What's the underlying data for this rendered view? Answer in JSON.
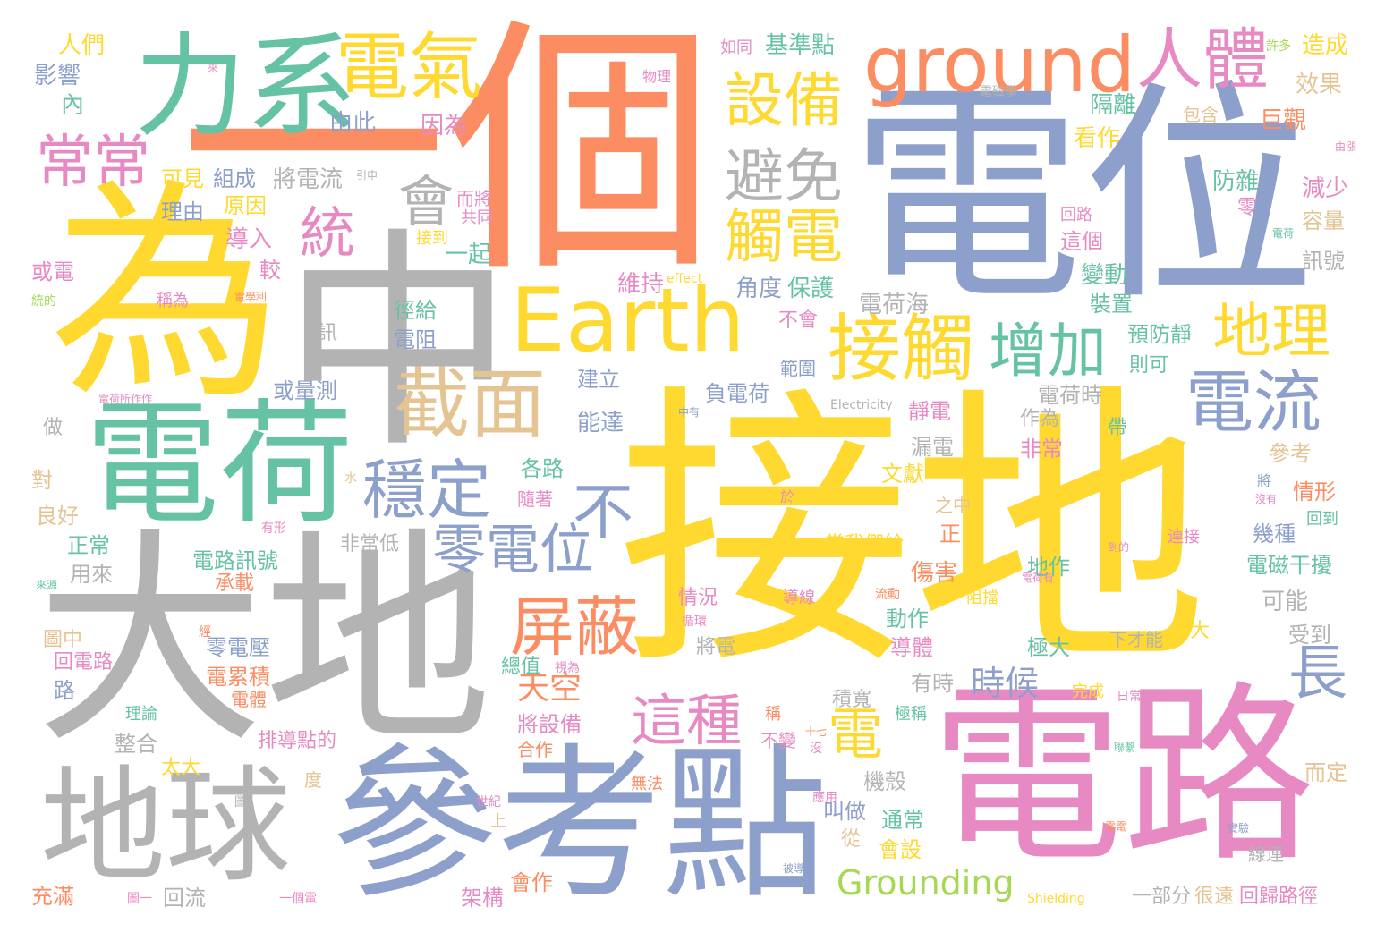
{
  "palette": {
    "orange": "#fc8d62",
    "blue": "#8da0cb",
    "pink": "#e78ac3",
    "green": "#66c2a5",
    "yellow": "#ffd92f",
    "lime": "#a6d854",
    "tan": "#e5c494",
    "gray": "#b3b3b3"
  },
  "words": [
    {
      "text": "接地",
      "color": "yellow"
    },
    {
      "text": "一個",
      "color": "orange"
    },
    {
      "text": "電位",
      "color": "blue"
    },
    {
      "text": "為",
      "color": "yellow"
    },
    {
      "text": "中",
      "color": "gray"
    },
    {
      "text": "大地",
      "color": "gray"
    },
    {
      "text": "電路",
      "color": "pink"
    },
    {
      "text": "參考點",
      "color": "blue"
    },
    {
      "text": "電荷",
      "color": "green"
    },
    {
      "text": "地球",
      "color": "gray"
    },
    {
      "text": "力系",
      "color": "green"
    },
    {
      "text": "電氣",
      "color": "yellow"
    },
    {
      "text": "ground",
      "color": "orange"
    },
    {
      "text": "人體",
      "color": "pink"
    },
    {
      "text": "Earth",
      "color": "yellow"
    },
    {
      "text": "截面",
      "color": "tan"
    },
    {
      "text": "接觸",
      "color": "yellow"
    },
    {
      "text": "設備",
      "color": "yellow"
    },
    {
      "text": "避免",
      "color": "gray"
    },
    {
      "text": "觸電",
      "color": "yellow"
    },
    {
      "text": "增加",
      "color": "green"
    },
    {
      "text": "地理",
      "color": "yellow"
    },
    {
      "text": "電流",
      "color": "blue"
    },
    {
      "text": "穩定",
      "color": "blue"
    },
    {
      "text": "零電位",
      "color": "blue"
    },
    {
      "text": "屏蔽",
      "color": "orange"
    },
    {
      "text": "這種",
      "color": "pink"
    },
    {
      "text": "常常",
      "color": "pink"
    },
    {
      "text": "統",
      "color": "pink"
    },
    {
      "text": "會",
      "color": "gray"
    },
    {
      "text": "不",
      "color": "blue"
    },
    {
      "text": "長",
      "color": "blue"
    },
    {
      "text": "電",
      "color": "yellow"
    },
    {
      "text": "時候",
      "color": "blue"
    },
    {
      "text": "天空",
      "color": "orange"
    },
    {
      "text": "Grounding",
      "color": "lime"
    },
    {
      "text": "人們",
      "color": "yellow"
    },
    {
      "text": "影響",
      "color": "blue"
    },
    {
      "text": "內",
      "color": "green"
    },
    {
      "text": "由此",
      "color": "blue"
    },
    {
      "text": "因為",
      "color": "pink"
    },
    {
      "text": "可見",
      "color": "yellow"
    },
    {
      "text": "組成",
      "color": "blue"
    },
    {
      "text": "將電流",
      "color": "gray"
    },
    {
      "text": "理由",
      "color": "blue"
    },
    {
      "text": "原因",
      "color": "yellow"
    },
    {
      "text": "導入",
      "color": "pink"
    },
    {
      "text": "或電",
      "color": "pink"
    },
    {
      "text": "較",
      "color": "pink"
    },
    {
      "text": "而將",
      "color": "pink"
    },
    {
      "text": "共同",
      "color": "pink"
    },
    {
      "text": "接到",
      "color": "yellow"
    },
    {
      "text": "一起",
      "color": "green"
    },
    {
      "text": "稱為",
      "color": "pink"
    },
    {
      "text": "訊",
      "color": "gray"
    },
    {
      "text": "徑給",
      "color": "green"
    },
    {
      "text": "電阻",
      "color": "blue"
    },
    {
      "text": "或量測",
      "color": "blue"
    },
    {
      "text": "基準點",
      "color": "green"
    },
    {
      "text": "如同",
      "color": "pink"
    },
    {
      "text": "物理",
      "color": "pink"
    },
    {
      "text": "許多",
      "color": "lime"
    },
    {
      "text": "造成",
      "color": "yellow"
    },
    {
      "text": "效果",
      "color": "tan"
    },
    {
      "text": "隔離",
      "color": "green"
    },
    {
      "text": "包含",
      "color": "tan"
    },
    {
      "text": "巨觀",
      "color": "orange"
    },
    {
      "text": "看作",
      "color": "yellow"
    },
    {
      "text": "防雜",
      "color": "green"
    },
    {
      "text": "減少",
      "color": "pink"
    },
    {
      "text": "零",
      "color": "pink"
    },
    {
      "text": "容量",
      "color": "tan"
    },
    {
      "text": "回路",
      "color": "pink"
    },
    {
      "text": "這個",
      "color": "pink"
    },
    {
      "text": "訊號",
      "color": "gray"
    },
    {
      "text": "變動",
      "color": "green"
    },
    {
      "text": "裝置",
      "color": "green"
    },
    {
      "text": "維持",
      "color": "pink"
    },
    {
      "text": "角度",
      "color": "blue"
    },
    {
      "text": "保護",
      "color": "green"
    },
    {
      "text": "電荷海",
      "color": "gray"
    },
    {
      "text": "不會",
      "color": "pink"
    },
    {
      "text": "預防靜",
      "color": "green"
    },
    {
      "text": "則可",
      "color": "green"
    },
    {
      "text": "範圍",
      "color": "blue"
    },
    {
      "text": "建立",
      "color": "blue"
    },
    {
      "text": "負電荷",
      "color": "blue"
    },
    {
      "text": "電荷時",
      "color": "gray"
    },
    {
      "text": "靜電",
      "color": "pink"
    },
    {
      "text": "作為",
      "color": "gray"
    },
    {
      "text": "漏電",
      "color": "gray"
    },
    {
      "text": "能達",
      "color": "blue"
    },
    {
      "text": "做",
      "color": "gray"
    },
    {
      "text": "非常",
      "color": "pink"
    },
    {
      "text": "帶",
      "color": "green"
    },
    {
      "text": "參考",
      "color": "tan"
    },
    {
      "text": "各路",
      "color": "green"
    },
    {
      "text": "文獻",
      "color": "yellow"
    },
    {
      "text": "情形",
      "color": "orange"
    },
    {
      "text": "對",
      "color": "tan"
    },
    {
      "text": "良好",
      "color": "tan"
    },
    {
      "text": "隨著",
      "color": "pink"
    },
    {
      "text": "之中",
      "color": "tan"
    },
    {
      "text": "正",
      "color": "orange"
    },
    {
      "text": "幾種",
      "color": "blue"
    },
    {
      "text": "回到",
      "color": "green"
    },
    {
      "text": "正常",
      "color": "green"
    },
    {
      "text": "非常低",
      "color": "gray"
    },
    {
      "text": "當我們給",
      "color": "yellow"
    },
    {
      "text": "電路訊號",
      "color": "green"
    },
    {
      "text": "用來",
      "color": "gray"
    },
    {
      "text": "承載",
      "color": "orange"
    },
    {
      "text": "傷害",
      "color": "orange"
    },
    {
      "text": "地作",
      "color": "green"
    },
    {
      "text": "電磁干擾",
      "color": "green"
    },
    {
      "text": "可能",
      "color": "gray"
    },
    {
      "text": "連接",
      "color": "pink"
    },
    {
      "text": "情況",
      "color": "pink"
    },
    {
      "text": "導線",
      "color": "pink"
    },
    {
      "text": "動作",
      "color": "green"
    },
    {
      "text": "阻擋",
      "color": "yellow"
    },
    {
      "text": "圖中",
      "color": "tan"
    },
    {
      "text": "零電壓",
      "color": "blue"
    },
    {
      "text": "回電路",
      "color": "pink"
    },
    {
      "text": "電累積",
      "color": "orange"
    },
    {
      "text": "將電",
      "color": "gray"
    },
    {
      "text": "總值",
      "color": "green"
    },
    {
      "text": "導體",
      "color": "pink"
    },
    {
      "text": "極大",
      "color": "green"
    },
    {
      "text": "大",
      "color": "yellow"
    },
    {
      "text": "下才能",
      "color": "gray"
    },
    {
      "text": "受到",
      "color": "gray"
    },
    {
      "text": "路",
      "color": "blue"
    },
    {
      "text": "電體",
      "color": "orange"
    },
    {
      "text": "有時",
      "color": "gray"
    },
    {
      "text": "完成",
      "color": "yellow"
    },
    {
      "text": "日常生活",
      "color": "pink"
    },
    {
      "text": "理論",
      "color": "green"
    },
    {
      "text": "將設備",
      "color": "pink"
    },
    {
      "text": "整合",
      "color": "gray"
    },
    {
      "text": "排導點的",
      "color": "pink"
    },
    {
      "text": "積寬",
      "color": "gray"
    },
    {
      "text": "極稱",
      "color": "green"
    },
    {
      "text": "不變",
      "color": "pink"
    },
    {
      "text": "稱",
      "color": "orange"
    },
    {
      "text": "太大",
      "color": "yellow"
    },
    {
      "text": "合作",
      "color": "orange"
    },
    {
      "text": "機殼",
      "color": "gray"
    },
    {
      "text": "叫做",
      "color": "blue"
    },
    {
      "text": "而定",
      "color": "tan"
    },
    {
      "text": "度",
      "color": "tan"
    },
    {
      "text": "無法",
      "color": "orange"
    },
    {
      "text": "通常",
      "color": "green"
    },
    {
      "text": "會設",
      "color": "yellow"
    },
    {
      "text": "從",
      "color": "tan"
    },
    {
      "text": "上",
      "color": "tan"
    },
    {
      "text": "線連",
      "color": "gray"
    },
    {
      "text": "充滿",
      "color": "orange"
    },
    {
      "text": "回流",
      "color": "gray"
    },
    {
      "text": "架構",
      "color": "pink"
    },
    {
      "text": "會作",
      "color": "orange"
    },
    {
      "text": "一部分",
      "color": "gray"
    },
    {
      "text": "很遠",
      "color": "tan"
    },
    {
      "text": "回歸路徑",
      "color": "pink"
    },
    {
      "text": "Shielding",
      "color": "yellow"
    },
    {
      "text": "effect",
      "color": "yellow"
    },
    {
      "text": "Electricity",
      "color": "gray"
    },
    {
      "text": "電磁學",
      "color": "gray"
    },
    {
      "text": "有形",
      "color": "pink"
    },
    {
      "text": "水",
      "color": "tan"
    },
    {
      "text": "經",
      "color": "orange"
    },
    {
      "text": "流動",
      "color": "orange"
    },
    {
      "text": "循環",
      "color": "pink"
    },
    {
      "text": "視為",
      "color": "pink"
    },
    {
      "text": "世紀",
      "color": "pink"
    },
    {
      "text": "十七",
      "color": "orange"
    },
    {
      "text": "沒",
      "color": "pink"
    },
    {
      "text": "應用",
      "color": "pink"
    },
    {
      "text": "實驗",
      "color": "blue"
    },
    {
      "text": "電電",
      "color": "orange"
    },
    {
      "text": "由漲",
      "color": "pink"
    },
    {
      "text": "引申",
      "color": "gray"
    },
    {
      "text": "統的",
      "color": "lime"
    },
    {
      "text": "電學利",
      "color": "orange"
    },
    {
      "text": "中有",
      "color": "blue"
    },
    {
      "text": "於",
      "color": "pink"
    },
    {
      "text": "將",
      "color": "blue"
    },
    {
      "text": "沒有",
      "color": "pink"
    },
    {
      "text": "到的",
      "color": "pink"
    },
    {
      "text": "圖",
      "color": "gray"
    },
    {
      "text": "圖一",
      "color": "pink"
    },
    {
      "text": "一個電",
      "color": "pink"
    },
    {
      "text": "被導",
      "color": "blue"
    },
    {
      "text": "電荷所作作",
      "color": "pink"
    },
    {
      "text": "來",
      "color": "pink"
    },
    {
      "text": "來源",
      "color": "green"
    },
    {
      "text": "電荷有",
      "color": "pink"
    },
    {
      "text": "電荷",
      "color": "green"
    },
    {
      "text": "聯繫",
      "color": "green"
    }
  ]
}
